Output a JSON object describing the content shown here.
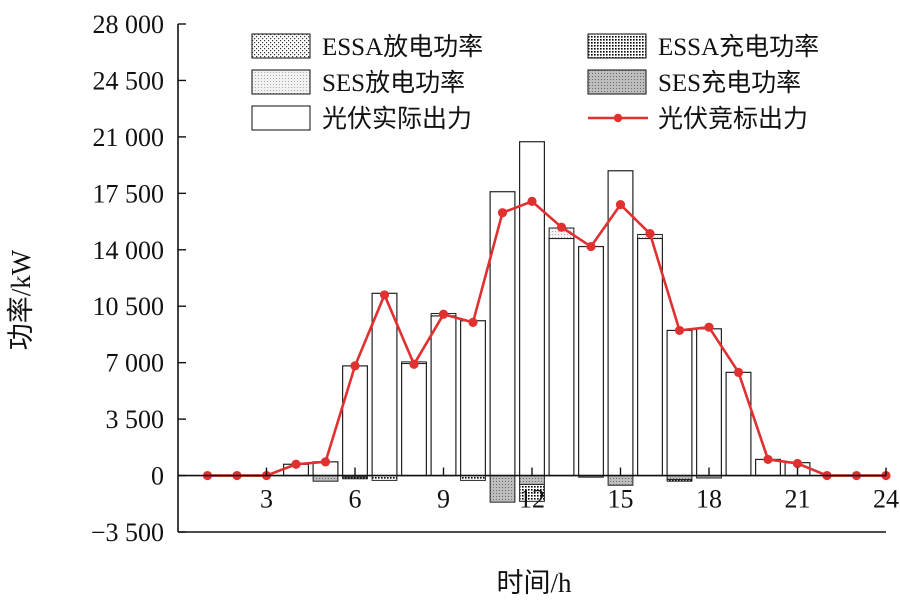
{
  "chart_data": {
    "type": "bar",
    "xlabel": "时间/h",
    "ylabel": "功率/kW",
    "xlim": [
      0,
      24
    ],
    "ylim": [
      -3500,
      28000
    ],
    "y_ticks": [
      -3500,
      0,
      3500,
      7000,
      10500,
      14000,
      17500,
      21000,
      24500,
      28000
    ],
    "y_tick_labels": [
      "−3 500",
      "0",
      "3 500",
      "7 000",
      "10 500",
      "14 000",
      "17 500",
      "21 000",
      "24 500",
      "28 000"
    ],
    "x_ticks": [
      3,
      6,
      9,
      12,
      15,
      18,
      21,
      24
    ],
    "x_tick_labels": [
      "3",
      "6",
      "9",
      "12",
      "15",
      "18",
      "21",
      "24"
    ],
    "grid": false,
    "legend_position": "top",
    "hours": [
      1,
      2,
      3,
      4,
      5,
      6,
      7,
      8,
      9,
      10,
      11,
      12,
      13,
      14,
      15,
      16,
      17,
      18,
      19,
      20,
      21,
      22,
      23,
      24
    ],
    "series": [
      {
        "name": "光伏实际出力",
        "kind": "bar",
        "values": [
          0,
          0,
          0,
          700,
          850,
          6800,
          11300,
          6950,
          9900,
          9600,
          17600,
          20700,
          14700,
          14200,
          18900,
          14700,
          9000,
          9100,
          6400,
          1000,
          800,
          0,
          0,
          0
        ]
      },
      {
        "name": "SES放电功率",
        "kind": "bar-stack-positive",
        "values": [
          0,
          0,
          0,
          0,
          0,
          0,
          0,
          100,
          150,
          0,
          0,
          0,
          650,
          0,
          0,
          250,
          0,
          0,
          0,
          0,
          0,
          0,
          0,
          0
        ]
      },
      {
        "name": "ESSA放电功率",
        "kind": "bar-stack-positive",
        "values": [
          0,
          0,
          0,
          0,
          0,
          0,
          0,
          0,
          0,
          0,
          0,
          0,
          0,
          0,
          0,
          0,
          0,
          0,
          0,
          0,
          0,
          0,
          0,
          0
        ]
      },
      {
        "name": "SES充电功率",
        "kind": "bar-negative",
        "values": [
          0,
          0,
          0,
          0,
          -350,
          -100,
          0,
          0,
          0,
          0,
          -1650,
          -550,
          0,
          -100,
          -600,
          0,
          -250,
          -150,
          0,
          0,
          0,
          0,
          0,
          0
        ]
      },
      {
        "name": "ESSA充电功率",
        "kind": "bar-negative-stack",
        "values": [
          0,
          0,
          0,
          0,
          0,
          -100,
          -300,
          0,
          0,
          -300,
          0,
          -1050,
          0,
          0,
          0,
          0,
          -100,
          0,
          0,
          0,
          0,
          0,
          0,
          0
        ]
      },
      {
        "name": "光伏竞标出力",
        "kind": "line",
        "color": "#e03030",
        "values": [
          0,
          0,
          0,
          700,
          850,
          6800,
          11200,
          6900,
          10000,
          9500,
          16300,
          17000,
          15400,
          14200,
          16800,
          15000,
          9000,
          9200,
          6400,
          1000,
          750,
          0,
          0,
          0
        ]
      }
    ],
    "legend_rows": [
      [
        "ESSA放电功率",
        "ESSA充电功率"
      ],
      [
        "SES放电功率",
        "SES充电功率"
      ],
      [
        "光伏实际出力",
        "光伏竞标出力"
      ]
    ]
  }
}
